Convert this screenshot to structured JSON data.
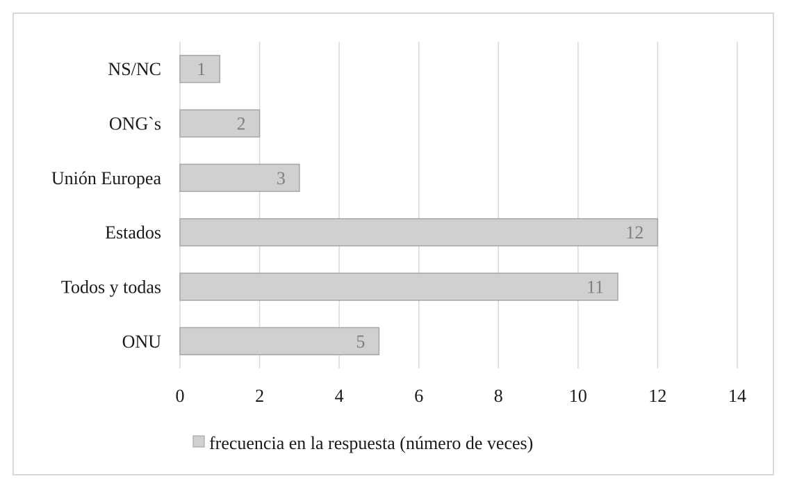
{
  "chart_data": {
    "type": "bar",
    "orientation": "horizontal",
    "categories": [
      "NS/NC",
      "ONG`s",
      "Unión Europea",
      "Estados",
      "Todos y todas",
      "ONU"
    ],
    "series": [
      {
        "name": "frecuencia en la respuesta (número de veces)",
        "values": [
          1,
          2,
          3,
          12,
          11,
          5
        ],
        "color": "#d0d0d0",
        "border_color": "#a6a6a6"
      }
    ],
    "xlim": [
      0,
      14
    ],
    "x_ticks": [
      0,
      2,
      4,
      6,
      8,
      10,
      12,
      14
    ],
    "grid": "vertical",
    "legend_position": "bottom",
    "data_labels": true
  }
}
